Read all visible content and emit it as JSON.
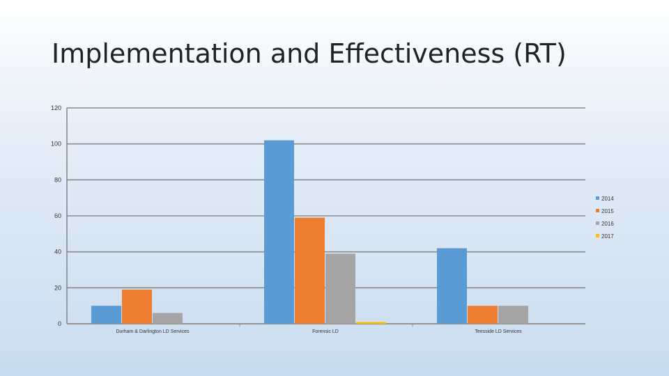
{
  "slide": {
    "title": "Implementation and Effectiveness (RT)"
  },
  "chart_data": {
    "type": "bar",
    "categories": [
      "Durham & Darlington LD Services",
      "Forensic LD",
      "Teesside LD Services"
    ],
    "series": [
      {
        "name": "2014",
        "values": [
          10,
          102,
          42
        ],
        "color": "#5b9bd5"
      },
      {
        "name": "2015",
        "values": [
          19,
          59,
          10
        ],
        "color": "#ed7d31"
      },
      {
        "name": "2016",
        "values": [
          6,
          39,
          10
        ],
        "color": "#a5a5a5"
      },
      {
        "name": "2017",
        "values": [
          0,
          1,
          0
        ],
        "color": "#ffc000"
      }
    ],
    "yticks": [
      "0",
      "20",
      "40",
      "60",
      "80",
      "100",
      "120"
    ],
    "ylim": [
      0,
      120
    ],
    "grid": true,
    "legend": "right"
  }
}
